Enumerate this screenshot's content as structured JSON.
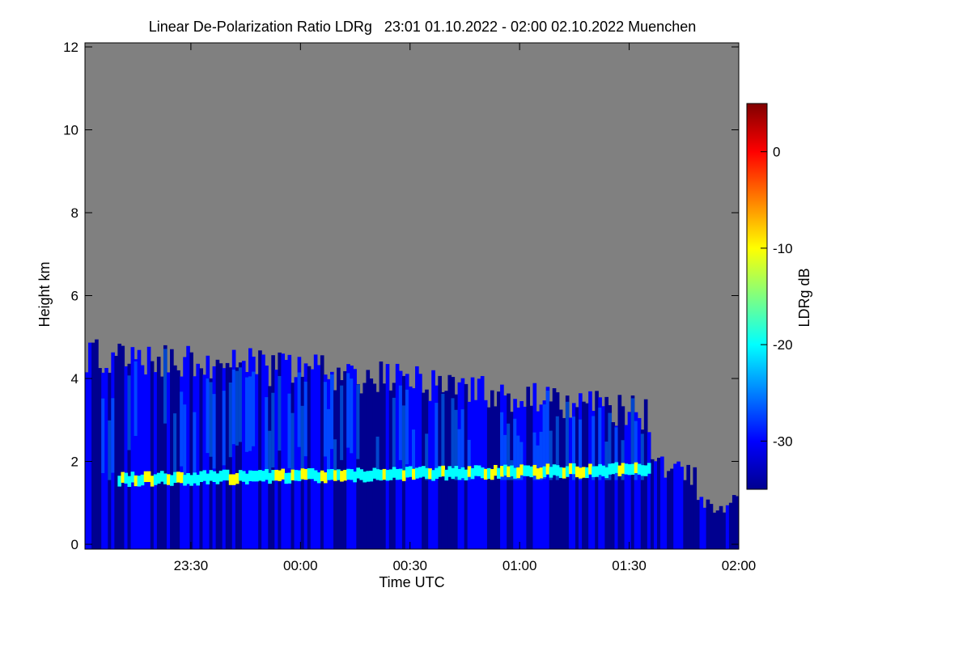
{
  "chart_data": {
    "type": "heatmap",
    "title": "Linear De-Polarization Ratio LDRg   23:01 01.10.2022 - 02:00 02.10.2022 Muenchen",
    "xlabel": "Time UTC",
    "ylabel": "Height km",
    "colorbar_label": "LDRg dB",
    "x_range": [
      "23:01",
      "02:00"
    ],
    "xticks": [
      "23:30",
      "00:00",
      "00:30",
      "01:00",
      "01:30",
      "02:00"
    ],
    "ylim": [
      0,
      12
    ],
    "yticks": [
      "0",
      "2",
      "4",
      "6",
      "8",
      "10",
      "12"
    ],
    "clim": [
      -35,
      5
    ],
    "cticks": [
      "0",
      "-10",
      "-20",
      "-30"
    ],
    "no_data_color": "#808080",
    "colormap": [
      "#00008f",
      "#0000ff",
      "#0080ff",
      "#00ffff",
      "#80ff80",
      "#ffff00",
      "#ff8000",
      "#ff0000",
      "#800000"
    ],
    "features": {
      "melting_layer_height_km": [
        1.55,
        1.85
      ],
      "cloud_top_height_km": [
        4.6,
        2.8
      ],
      "typical_ldr_db": -32,
      "melting_layer_ldr_db": -18
    }
  }
}
